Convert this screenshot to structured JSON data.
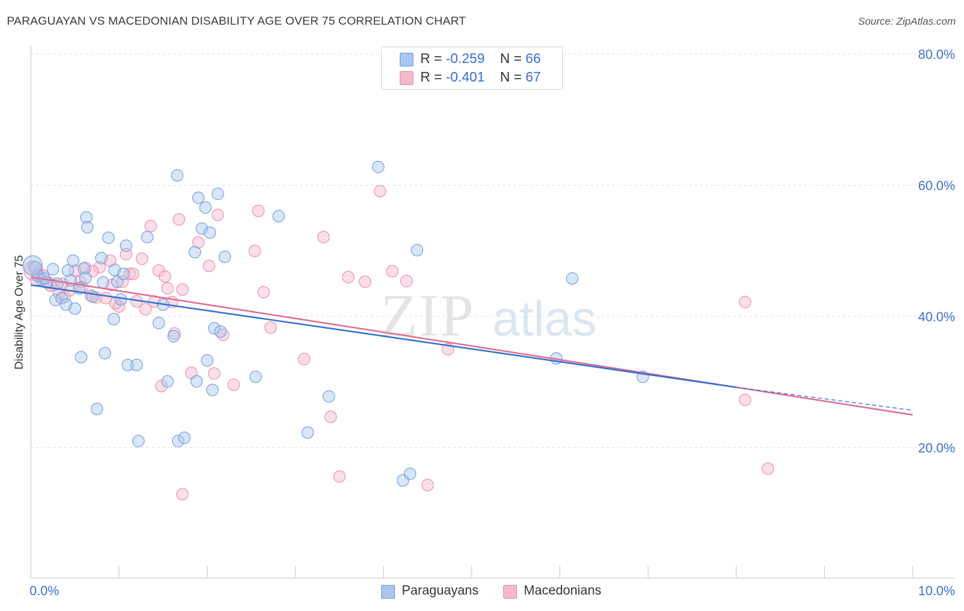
{
  "title": "PARAGUAYAN VS MACEDONIAN DISABILITY AGE OVER 75 CORRELATION CHART",
  "source": "Source: ZipAtlas.com",
  "watermark": {
    "zip": "ZIP",
    "atlas": "atlas"
  },
  "legend": {
    "r_label": "R = ",
    "n_label": "N = ",
    "rows": [
      {
        "r": "-0.259",
        "n": "66"
      },
      {
        "r": "-0.401",
        "n": "67"
      }
    ]
  },
  "bottom_legend": [
    "Paraguayans",
    "Macedonians"
  ],
  "colors": {
    "blue_fill": "#a9c7ee",
    "blue_stroke": "#6d9be0",
    "blue_line": "#2f6fd4",
    "pink_fill": "#f6b9cc",
    "pink_stroke": "#e88aa8",
    "pink_line": "#e06b93",
    "axis_text": "#3a6fd0",
    "grid": "#e2e2e2"
  },
  "chart_data": {
    "type": "scatter",
    "title": "PARAGUAYAN VS MACEDONIAN DISABILITY AGE OVER 75 CORRELATION CHART",
    "xlabel": "",
    "ylabel": "Disability Age Over 75",
    "xlim": [
      0,
      10
    ],
    "ylim": [
      0,
      80
    ],
    "x_tick_labels": [
      "0.0%",
      "10.0%"
    ],
    "y_ticks": [
      20,
      40,
      60,
      80
    ],
    "y_tick_labels": [
      "20.0%",
      "40.0%",
      "60.0%",
      "80.0%"
    ],
    "grid": "horizontal dashed",
    "series": [
      {
        "name": "Paraguayans",
        "color": "#6d9be0",
        "r": -0.259,
        "n": 66,
        "trend": {
          "x0": 0.0,
          "y0": 44.8,
          "x1": 8.0,
          "y1": 29.2,
          "dash_to_x": 10.0,
          "dash_to_y": 25.7
        },
        "points": [
          [
            0.05,
            47.5
          ],
          [
            0.12,
            45.6
          ],
          [
            0.18,
            45.2
          ],
          [
            0.25,
            47.2
          ],
          [
            0.28,
            42.5
          ],
          [
            0.35,
            42.8
          ],
          [
            0.4,
            41.8
          ],
          [
            0.42,
            47.0
          ],
          [
            0.45,
            45.5
          ],
          [
            0.48,
            48.5
          ],
          [
            0.5,
            41.2
          ],
          [
            0.55,
            44.3
          ],
          [
            0.6,
            47.3
          ],
          [
            0.62,
            45.9
          ],
          [
            0.57,
            33.8
          ],
          [
            0.63,
            55.1
          ],
          [
            0.64,
            53.6
          ],
          [
            0.7,
            43.0
          ],
          [
            0.75,
            25.9
          ],
          [
            0.8,
            48.9
          ],
          [
            0.82,
            45.2
          ],
          [
            0.84,
            34.4
          ],
          [
            0.88,
            52.0
          ],
          [
            0.94,
            39.6
          ],
          [
            0.95,
            47.1
          ],
          [
            0.98,
            45.3
          ],
          [
            1.02,
            42.6
          ],
          [
            1.05,
            46.5
          ],
          [
            1.08,
            50.8
          ],
          [
            1.1,
            32.6
          ],
          [
            1.2,
            32.6
          ],
          [
            1.22,
            21.0
          ],
          [
            1.32,
            52.1
          ],
          [
            1.45,
            39.0
          ],
          [
            1.5,
            41.8
          ],
          [
            1.55,
            30.1
          ],
          [
            1.62,
            37.0
          ],
          [
            1.66,
            61.5
          ],
          [
            1.67,
            21.0
          ],
          [
            1.74,
            21.5
          ],
          [
            1.86,
            49.8
          ],
          [
            1.88,
            30.1
          ],
          [
            1.9,
            58.1
          ],
          [
            1.94,
            53.4
          ],
          [
            1.98,
            56.6
          ],
          [
            2.0,
            33.3
          ],
          [
            2.03,
            52.8
          ],
          [
            2.06,
            28.8
          ],
          [
            2.08,
            38.2
          ],
          [
            2.12,
            58.7
          ],
          [
            2.15,
            37.7
          ],
          [
            2.2,
            49.1
          ],
          [
            2.55,
            30.8
          ],
          [
            2.81,
            55.3
          ],
          [
            3.14,
            22.3
          ],
          [
            3.38,
            27.8
          ],
          [
            3.94,
            62.8
          ],
          [
            4.22,
            15.0
          ],
          [
            4.3,
            16.0
          ],
          [
            4.38,
            50.1
          ],
          [
            5.96,
            33.6
          ],
          [
            6.14,
            45.8
          ],
          [
            6.94,
            30.8
          ],
          [
            0.08,
            46.2
          ],
          [
            0.15,
            45.8
          ],
          [
            0.3,
            45.0
          ]
        ]
      },
      {
        "name": "Macedonians",
        "color": "#e88aa8",
        "r": -0.401,
        "n": 67,
        "trend": {
          "x0": 0.0,
          "y0": 46.0,
          "x1": 10.0,
          "y1": 25.0
        },
        "points": [
          [
            0.03,
            47.6
          ],
          [
            0.08,
            46.5
          ],
          [
            0.14,
            46.2
          ],
          [
            0.2,
            45.2
          ],
          [
            0.26,
            44.8
          ],
          [
            0.32,
            43.5
          ],
          [
            0.38,
            43.0
          ],
          [
            0.44,
            44.0
          ],
          [
            0.5,
            47.0
          ],
          [
            0.56,
            45.3
          ],
          [
            0.62,
            47.4
          ],
          [
            0.68,
            43.2
          ],
          [
            0.74,
            42.9
          ],
          [
            0.78,
            47.5
          ],
          [
            0.85,
            42.8
          ],
          [
            0.9,
            48.5
          ],
          [
            0.96,
            42.0
          ],
          [
            1.0,
            41.5
          ],
          [
            1.04,
            45.3
          ],
          [
            1.08,
            49.5
          ],
          [
            1.12,
            46.5
          ],
          [
            1.16,
            46.5
          ],
          [
            1.2,
            42.3
          ],
          [
            1.26,
            48.8
          ],
          [
            1.3,
            41.1
          ],
          [
            1.36,
            53.8
          ],
          [
            1.4,
            42.3
          ],
          [
            1.45,
            47.0
          ],
          [
            1.48,
            29.4
          ],
          [
            1.52,
            46.1
          ],
          [
            1.55,
            44.3
          ],
          [
            1.6,
            42.2
          ],
          [
            1.63,
            37.4
          ],
          [
            1.68,
            54.8
          ],
          [
            1.72,
            44.1
          ],
          [
            1.72,
            12.9
          ],
          [
            1.82,
            31.4
          ],
          [
            1.9,
            51.3
          ],
          [
            2.02,
            47.7
          ],
          [
            2.08,
            31.3
          ],
          [
            2.12,
            55.5
          ],
          [
            2.18,
            37.2
          ],
          [
            2.3,
            29.6
          ],
          [
            2.54,
            50.0
          ],
          [
            2.58,
            56.1
          ],
          [
            2.64,
            43.7
          ],
          [
            2.72,
            38.3
          ],
          [
            3.1,
            33.5
          ],
          [
            3.32,
            52.1
          ],
          [
            3.4,
            24.7
          ],
          [
            3.5,
            15.6
          ],
          [
            3.6,
            46.0
          ],
          [
            3.79,
            45.3
          ],
          [
            3.96,
            59.1
          ],
          [
            4.1,
            46.9
          ],
          [
            4.26,
            45.4
          ],
          [
            4.5,
            14.3
          ],
          [
            4.73,
            35.0
          ],
          [
            8.1,
            42.2
          ],
          [
            8.1,
            27.3
          ],
          [
            8.36,
            16.8
          ],
          [
            0.06,
            45.5
          ],
          [
            0.22,
            44.7
          ],
          [
            0.36,
            45.0
          ],
          [
            0.58,
            44.5
          ],
          [
            0.7,
            46.9
          ],
          [
            0.92,
            44.8
          ]
        ]
      }
    ]
  }
}
